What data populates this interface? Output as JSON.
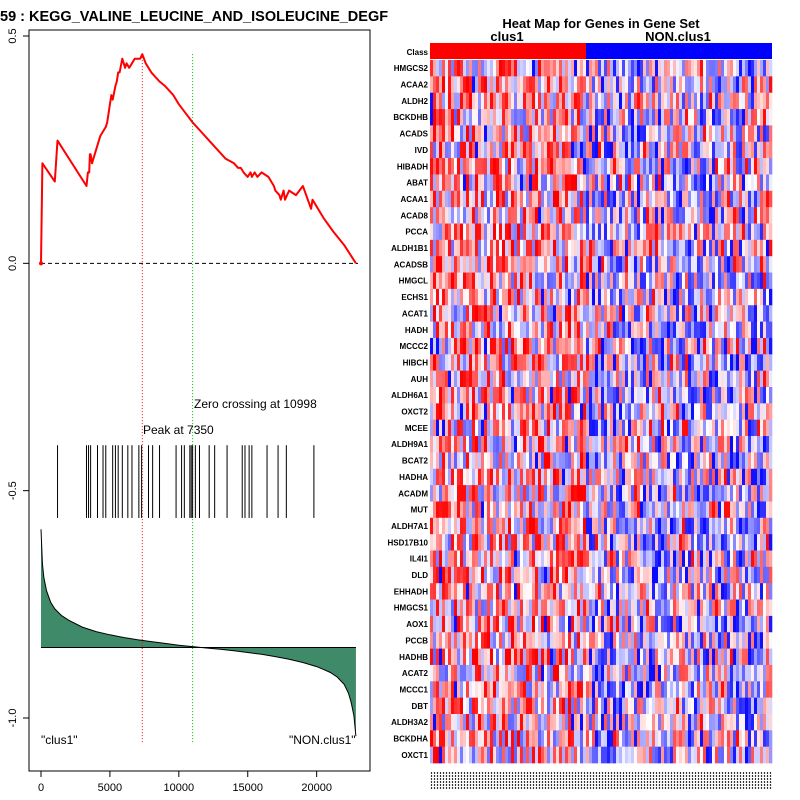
{
  "chart_data": [
    {
      "type": "line",
      "title": "59 : KEGG_VALINE_LEUCINE_AND_ISOLEUCINE_DEGF",
      "xlabel": "",
      "ylabel": "",
      "xlim": [
        0,
        23000
      ],
      "ylim": [
        -1.05,
        0.52
      ],
      "x_ticks": [
        0,
        5000,
        10000,
        15000,
        20000
      ],
      "x_tick_labels": [
        "0",
        "5000",
        "10000",
        "15000",
        "20000"
      ],
      "y_ticks": [
        0.5,
        0.0,
        -0.5,
        -1.0
      ],
      "y_tick_labels": [
        "0.5",
        "0.0",
        "-0.5",
        "-1.0"
      ],
      "running_es": {
        "x": [
          0,
          100,
          1000,
          1200,
          3300,
          3400,
          3500,
          3550,
          3600,
          3700,
          4200,
          4300,
          4700,
          4800,
          5100,
          5200,
          5400,
          5500,
          5600,
          5700,
          5900,
          6000,
          6100,
          6200,
          6400,
          6600,
          6800,
          7200,
          7350,
          7600,
          8000,
          8600,
          9000,
          9600,
          10000,
          10500,
          11000,
          11600,
          12200,
          12800,
          13400,
          14000,
          14300,
          14500,
          14700,
          15000,
          15200,
          15300,
          15500,
          15700,
          16000,
          16500,
          16700,
          16900,
          17000,
          17300,
          17400,
          17600,
          17700,
          18000,
          18500,
          19000,
          19600,
          19700,
          20500,
          21200,
          22000,
          22850
        ],
        "y": [
          0.0,
          0.22,
          0.18,
          0.27,
          0.17,
          0.2,
          0.2,
          0.24,
          0.24,
          0.22,
          0.27,
          0.28,
          0.3,
          0.31,
          0.37,
          0.36,
          0.39,
          0.4,
          0.42,
          0.42,
          0.45,
          0.44,
          0.43,
          0.44,
          0.43,
          0.44,
          0.45,
          0.45,
          0.46,
          0.44,
          0.42,
          0.4,
          0.39,
          0.37,
          0.35,
          0.33,
          0.31,
          0.29,
          0.27,
          0.25,
          0.23,
          0.22,
          0.21,
          0.21,
          0.2,
          0.19,
          0.2,
          0.19,
          0.2,
          0.19,
          0.2,
          0.19,
          0.18,
          0.17,
          0.16,
          0.15,
          0.14,
          0.16,
          0.14,
          0.16,
          0.15,
          0.17,
          0.12,
          0.14,
          0.1,
          0.07,
          0.04,
          0.0
        ]
      },
      "zero_line": 0.0,
      "peak": {
        "x": 7350,
        "label": "Peak at 7350"
      },
      "zero_crossing": {
        "x": 10998,
        "label": "Zero crossing at 10998"
      },
      "hits": [
        1200,
        3300,
        3450,
        3600,
        4100,
        4500,
        4700,
        5200,
        5400,
        5600,
        5900,
        6300,
        6600,
        7100,
        7300,
        7800,
        8100,
        8600,
        9800,
        10200,
        10400,
        10800,
        10900,
        11000,
        11200,
        11500,
        12200,
        12600,
        13500,
        14600,
        14800,
        15100,
        15300,
        16400,
        17200,
        17800,
        19800
      ],
      "hit_band": {
        "y_top": -0.4,
        "y_bottom": -0.56
      },
      "ranked_metric": {
        "baseline": -0.845,
        "x": [
          0,
          100,
          200,
          400,
          700,
          1000,
          1500,
          2000,
          3000,
          4000,
          5000,
          6000,
          7000,
          8000,
          9000,
          10000,
          11000,
          12000,
          13000,
          14000,
          15000,
          16000,
          17000,
          18000,
          19000,
          20000,
          20500,
          21000,
          21500,
          22000,
          22300,
          22500,
          22700,
          22850
        ],
        "y": [
          -0.585,
          -0.66,
          -0.69,
          -0.72,
          -0.745,
          -0.76,
          -0.775,
          -0.785,
          -0.8,
          -0.81,
          -0.817,
          -0.823,
          -0.828,
          -0.832,
          -0.836,
          -0.84,
          -0.843,
          -0.846,
          -0.849,
          -0.852,
          -0.856,
          -0.86,
          -0.865,
          -0.871,
          -0.878,
          -0.887,
          -0.893,
          -0.9,
          -0.91,
          -0.926,
          -0.945,
          -0.965,
          -0.995,
          -1.04
        ]
      },
      "left_label": "\"clus1\"",
      "right_label": "\"NON.clus1\"",
      "colors": {
        "es_line": "#ff0000",
        "peak_line": "#ff0000",
        "zero_cross_line": "#00bb00",
        "metric_fill": "#3f8a68",
        "hits": "#000000"
      }
    },
    {
      "type": "heatmap",
      "title": "Heat Map for Genes in Gene Set",
      "class_row_label": "Class",
      "class_groups": [
        {
          "name": "clus1",
          "color": "#ff0000"
        },
        {
          "name": "NON.clus1",
          "color": "#0000ff"
        }
      ],
      "genes": [
        "HMGCS2",
        "ACAA2",
        "ALDH2",
        "BCKDHB",
        "ACADS",
        "IVD",
        "HIBADH",
        "ABAT",
        "ACAA1",
        "ACAD8",
        "PCCA",
        "ALDH1B1",
        "ACADSB",
        "HMGCL",
        "ECHS1",
        "ACAT1",
        "HADH",
        "MCCC2",
        "HIBCH",
        "AUH",
        "ALDH6A1",
        "OXCT2",
        "MCEE",
        "ALDH9A1",
        "BCAT2",
        "HADHA",
        "ACADM",
        "MUT",
        "ALDH7A1",
        "HSD17B10",
        "IL4I1",
        "DLD",
        "EHHADH",
        "HMGCS1",
        "AOX1",
        "PCCB",
        "HADHB",
        "ACAT2",
        "MCCC1",
        "DBT",
        "ALDH3A2",
        "BCKDHA",
        "OXCT1"
      ],
      "colors": {
        "high": "#ff0000",
        "mid": "#ffffff",
        "low": "#0000ff"
      }
    }
  ]
}
